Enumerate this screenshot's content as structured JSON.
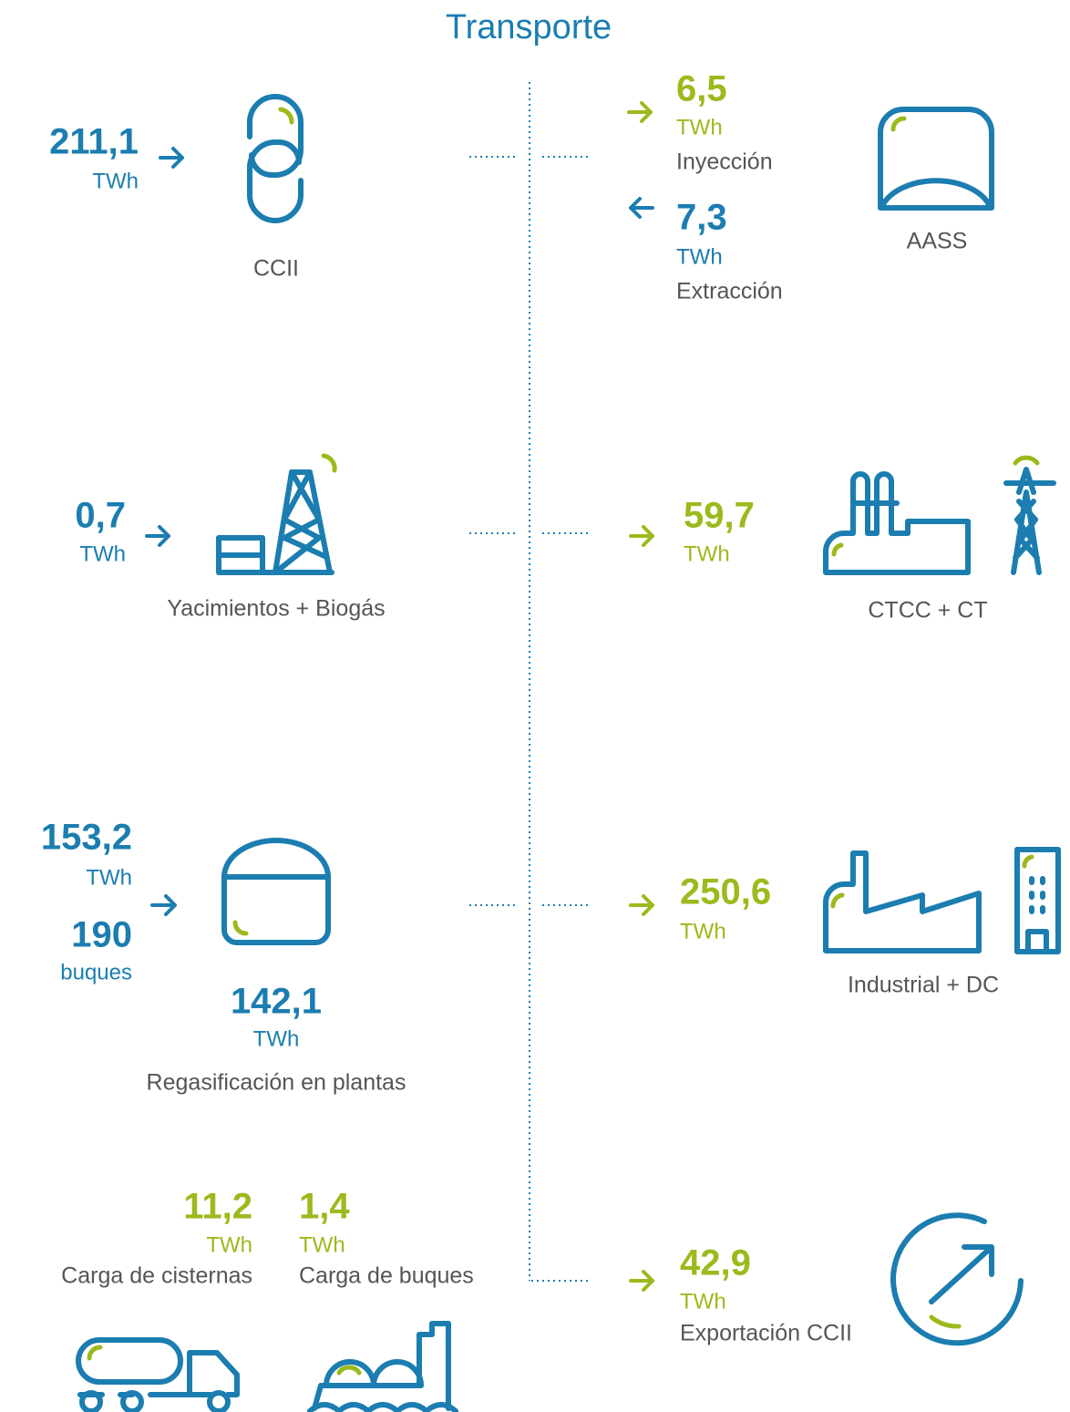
{
  "title": "Transporte",
  "inputs": {
    "ccii": {
      "value": "211,1",
      "unit": "TWh",
      "label": "CCII"
    },
    "yacimientos": {
      "value": "0,7",
      "unit": "TWh",
      "label": "Yacimientos + Biogás"
    },
    "regasificacion": {
      "gas_in": {
        "value": "153,2",
        "unit": "TWh"
      },
      "ships_in": {
        "value": "190",
        "unit": "buques"
      },
      "output": {
        "value": "142,1",
        "unit": "TWh"
      },
      "label": "Regasificación en plantas"
    },
    "cisternas": {
      "value": "11,2",
      "unit": "TWh",
      "label": "Carga de cisternas"
    },
    "buques": {
      "value": "1,4",
      "unit": "TWh",
      "label": "Carga de buques"
    }
  },
  "outputs": {
    "aass": {
      "injection": {
        "value": "6,5",
        "unit": "TWh",
        "label": "Inyección"
      },
      "extraction": {
        "value": "7,3",
        "unit": "TWh",
        "label": "Extracción"
      },
      "label": "AASS"
    },
    "ctcc": {
      "value": "59,7",
      "unit": "TWh",
      "label": "CTCC + CT"
    },
    "industrial": {
      "value": "250,6",
      "unit": "TWh",
      "label": "Industrial + DC"
    },
    "export": {
      "value": "42,9",
      "unit": "TWh",
      "label": "Exportación CCII"
    }
  }
}
